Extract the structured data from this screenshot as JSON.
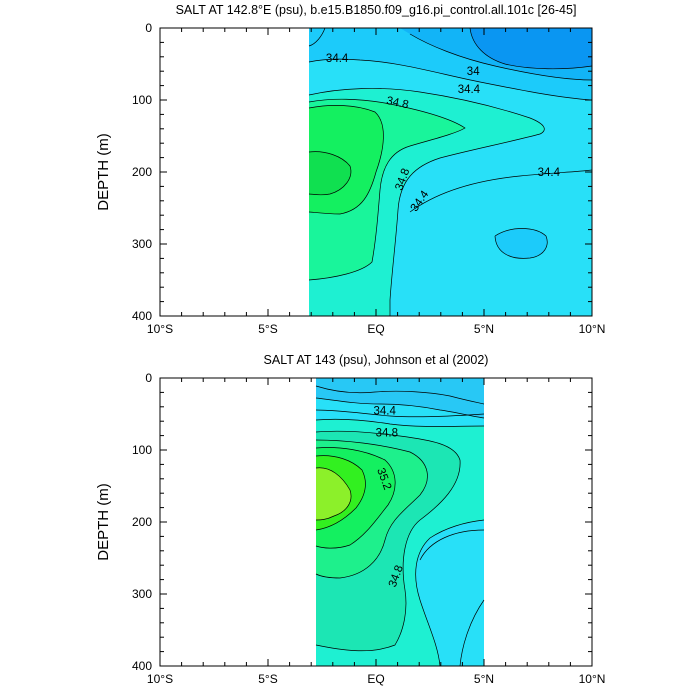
{
  "chart_data": [
    {
      "type": "contour",
      "title": "SALT AT 142.8°E (psu), b.e15.B1850.f09_g16.pi_control.all.101c [26-45]",
      "ylabel": "DEPTH (m)",
      "xlabel": "",
      "xlim": [
        -10,
        10
      ],
      "ylim": [
        400,
        0
      ],
      "data_extent_lat": [
        -3.2,
        10
      ],
      "x_ticks": [
        {
          "value": -10,
          "label": "10°S"
        },
        {
          "value": -5,
          "label": "5°S"
        },
        {
          "value": 0,
          "label": "EQ"
        },
        {
          "value": 5,
          "label": "5°N"
        },
        {
          "value": 10,
          "label": "10°N"
        }
      ],
      "y_ticks": [
        {
          "value": 0,
          "label": "0"
        },
        {
          "value": 100,
          "label": "100"
        },
        {
          "value": 200,
          "label": "200"
        },
        {
          "value": 300,
          "label": "300"
        },
        {
          "value": 400,
          "label": "400"
        }
      ],
      "contour_labels": [
        {
          "text": "34.4",
          "lat": -1.8,
          "depth": 42,
          "angle": 0
        },
        {
          "text": "34",
          "lat": 4.5,
          "depth": 60,
          "angle": 0
        },
        {
          "text": "34.4",
          "lat": 4.3,
          "depth": 85,
          "angle": 0
        },
        {
          "text": "34.8",
          "lat": 1.0,
          "depth": 103,
          "angle": 12
        },
        {
          "text": "34.8",
          "lat": 1.2,
          "depth": 210,
          "angle": -70
        },
        {
          "text": "34.4",
          "lat": 2.0,
          "depth": 240,
          "angle": -55
        },
        {
          "text": "34.4",
          "lat": 8.0,
          "depth": 200,
          "angle": 0
        }
      ],
      "colors": {
        "s33_6": "#0a96f2",
        "s34_0": "#12b4f7",
        "s34_2": "#1ccbfa",
        "s34_4": "#28e0f8",
        "s34_6": "#1ef0d2",
        "s34_8": "#19f59b",
        "s35_0": "#14f060"
      }
    },
    {
      "type": "contour",
      "title": "SALT AT 143 (psu), Johnson et al (2002)",
      "ylabel": "DEPTH (m)",
      "xlabel": "",
      "xlim": [
        -10,
        10
      ],
      "ylim": [
        400,
        0
      ],
      "data_extent_lat": [
        -2.8,
        5
      ],
      "x_ticks": [
        {
          "value": -10,
          "label": "10°S"
        },
        {
          "value": -5,
          "label": "5°S"
        },
        {
          "value": 0,
          "label": "EQ"
        },
        {
          "value": 5,
          "label": "5°N"
        },
        {
          "value": 10,
          "label": "10°N"
        }
      ],
      "y_ticks": [
        {
          "value": 0,
          "label": "0"
        },
        {
          "value": 100,
          "label": "100"
        },
        {
          "value": 200,
          "label": "200"
        },
        {
          "value": 300,
          "label": "300"
        },
        {
          "value": 400,
          "label": "400"
        }
      ],
      "contour_labels": [
        {
          "text": "34.4",
          "lat": 0.4,
          "depth": 45,
          "angle": 0
        },
        {
          "text": "34.8",
          "lat": 0.5,
          "depth": 76,
          "angle": 0
        },
        {
          "text": "35.2",
          "lat": 0.4,
          "depth": 140,
          "angle": 70
        },
        {
          "text": "34.8",
          "lat": 0.9,
          "depth": 275,
          "angle": -70
        }
      ],
      "colors": {
        "s34_2": "#28c8f5",
        "s34_4": "#28e0f8",
        "s34_6": "#1ef0d2",
        "s34_8": "#1ce6b4",
        "s35_0": "#1ef08c",
        "s35_2": "#14f060",
        "s35_4": "#32f020",
        "s35_6": "#8cf02a"
      }
    }
  ]
}
